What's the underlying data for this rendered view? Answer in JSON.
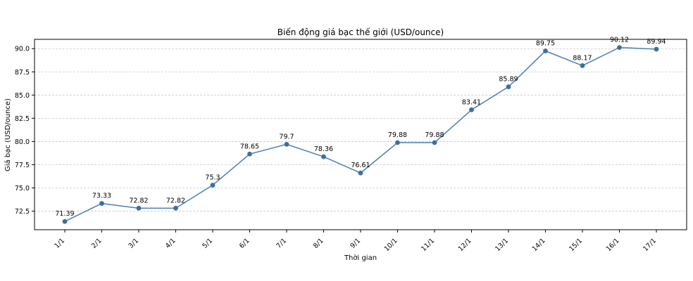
{
  "chart_data": {
    "type": "line",
    "title": "Biến động giá bạc thế giới (USD/ounce)",
    "xlabel": "Thời gian",
    "ylabel": "Giá bạc (USD/ounce)",
    "categories": [
      "1/1",
      "2/1",
      "3/1",
      "4/1",
      "5/1",
      "6/1",
      "7/1",
      "8/1",
      "9/1",
      "10/1",
      "11/1",
      "12/1",
      "13/1",
      "14/1",
      "15/1",
      "16/1",
      "17/1"
    ],
    "series": [
      {
        "values": [
          71.39,
          73.33,
          72.82,
          72.82,
          75.3,
          78.65,
          79.7,
          78.36,
          76.61,
          79.88,
          79.88,
          83.41,
          85.89,
          89.75,
          88.17,
          90.12,
          89.94
        ],
        "labels": [
          "71.39",
          "73.33",
          "72.82",
          "72.82",
          "75.3",
          "78.65",
          "79.7",
          "78.36",
          "76.61",
          "79.88",
          "79.88",
          "83.41",
          "85.89",
          "89.75",
          "88.17",
          "90.12",
          "89.94"
        ]
      }
    ],
    "yticks": [
      "72.5",
      "75.0",
      "77.5",
      "80.0",
      "82.5",
      "85.0",
      "87.5",
      "90.0"
    ],
    "ylim": [
      70.5,
      91.0
    ],
    "grid": "horizontal-dashed",
    "colors": {
      "line": "#4a7fb0",
      "marker": "#3b6fa3",
      "grid": "#c8c8c8"
    }
  }
}
